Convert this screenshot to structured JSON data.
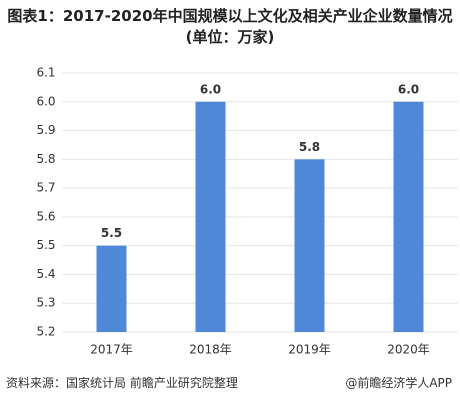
{
  "chart_data": {
    "type": "bar",
    "title": "图表1：2017-2020年中国规模以上文化及相关产业企业数量情况(单位：万家)",
    "categories": [
      "2017年",
      "2018年",
      "2019年",
      "2020年"
    ],
    "values": [
      5.5,
      6.0,
      5.8,
      6.0
    ],
    "value_labels": [
      "5.5",
      "6.0",
      "5.8",
      "6.0"
    ],
    "color": "#4e88d6",
    "ylim": [
      5.2,
      6.1
    ],
    "yticks": [
      5.2,
      5.3,
      5.4,
      5.5,
      5.6,
      5.7,
      5.8,
      5.9,
      {
        "value": 6,
        "label": "6.0"
      },
      6.1
    ],
    "grid": true,
    "source": "资料来源：国家统计局 前瞻产业研究院整理",
    "brand": "@前瞻经济学人APP"
  }
}
